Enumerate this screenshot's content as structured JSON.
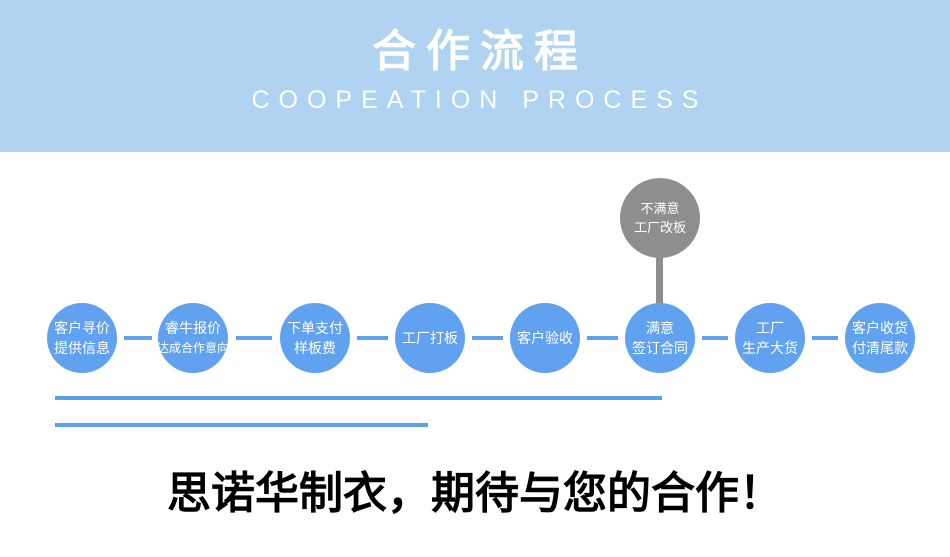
{
  "banner": {
    "title": "合作流程",
    "subtitle": "COOPEATION PROCESS",
    "bg_color": "#afd3f0",
    "title_color": "#ffffff",
    "subtitle_color": "#ffffff"
  },
  "flow": {
    "circle_color": "#60a1f0",
    "branch_color": "#8e8e8e",
    "connector_color": "#60a1f0",
    "steps": [
      {
        "line1": "客户寻价",
        "line2": "提供信息"
      },
      {
        "line1": "睿牛报价",
        "line2": "达成合作意向"
      },
      {
        "line1": "下单支付",
        "line2": "样板费"
      },
      {
        "line1": "工厂打板",
        "line2": ""
      },
      {
        "line1": "客户验收",
        "line2": ""
      },
      {
        "line1": "满意",
        "line2": "签订合同"
      },
      {
        "line1": "工厂",
        "line2": "生产大货"
      },
      {
        "line1": "客户收货",
        "line2": "付清尾款"
      }
    ],
    "branch": {
      "line1": "不满意",
      "line2": "工厂改板"
    }
  },
  "underlines": {
    "color": "#5b9ff0"
  },
  "footer": {
    "slogan": "思诺华制衣，期待与您的合作！",
    "color": "#000000"
  }
}
